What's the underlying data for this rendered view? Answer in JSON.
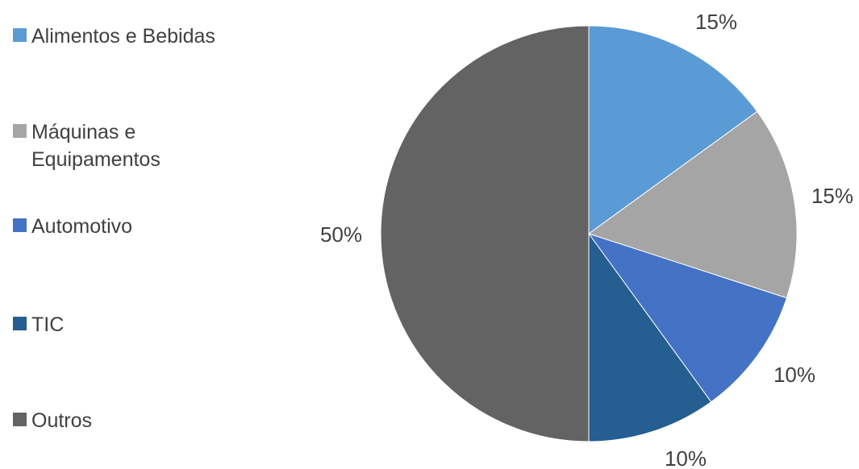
{
  "chart_data": {
    "type": "pie",
    "title": "",
    "legend_position": "left",
    "slices": [
      {
        "label": "Alimentos e Bebidas",
        "value": 15,
        "display": "15%",
        "color": "#5B9BD5"
      },
      {
        "label": "Máquinas e Equipamentos",
        "value": 15,
        "display": "15%",
        "color": "#A5A5A5"
      },
      {
        "label": "Automotivo",
        "value": 10,
        "display": "10%",
        "color": "#4472C4"
      },
      {
        "label": "TIC",
        "value": 10,
        "display": "10%",
        "color": "#255E91"
      },
      {
        "label": "Outros",
        "value": 50,
        "display": "50%",
        "color": "#636363"
      }
    ]
  }
}
